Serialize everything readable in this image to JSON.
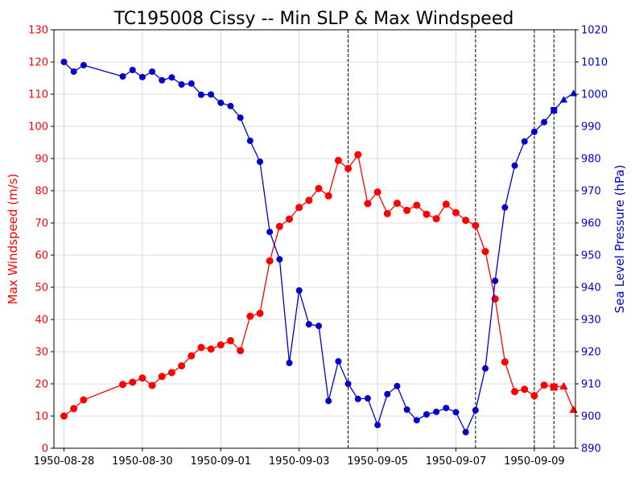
{
  "chart_data": {
    "type": "line",
    "title": "TC195008 Cissy -- Min SLP & Max Windspeed",
    "xlabel": "",
    "ylabel_left": "Max Windspeed (m/s)",
    "ylabel_right": "Sea Level Pressure (hPa)",
    "x_start": "1950-08-28",
    "x_tick_labels": [
      "1950-08-28",
      "1950-08-30",
      "1950-09-01",
      "1950-09-03",
      "1950-09-05",
      "1950-09-07",
      "1950-09-09"
    ],
    "ylim_left": [
      0,
      130
    ],
    "yticks_left": [
      0,
      10,
      20,
      30,
      40,
      50,
      60,
      70,
      80,
      90,
      100,
      110,
      120,
      130
    ],
    "ylim_right": [
      890,
      1020
    ],
    "yticks_right": [
      890,
      900,
      910,
      920,
      930,
      940,
      950,
      960,
      970,
      980,
      990,
      1000,
      1010,
      1020
    ],
    "grid": true,
    "vertical_lines": [
      "1950-09-04 06:00",
      "1950-09-07 12:00",
      "1950-09-09 00:00",
      "1950-09-09 12:00"
    ],
    "colors": {
      "wind": "#ff0000",
      "pressure": "#0000cc",
      "left_axis": "#ff0000",
      "right_axis": "#0000cc"
    },
    "series": [
      {
        "axis": "left",
        "color": "#ff0000",
        "points": [
          [
            "1950-08-28 00:00",
            10.0,
            "circle"
          ],
          [
            "1950-08-28 06:00",
            12.3,
            "circle"
          ],
          [
            "1950-08-28 12:00",
            15.0,
            "circle"
          ],
          [
            "1950-08-29 12:00",
            19.8,
            "circle"
          ],
          [
            "1950-08-29 18:00",
            20.5,
            "circle"
          ],
          [
            "1950-08-30 00:00",
            21.8,
            "circle"
          ],
          [
            "1950-08-30 06:00",
            19.5,
            "circle"
          ],
          [
            "1950-08-30 12:00",
            22.3,
            "circle"
          ],
          [
            "1950-08-30 18:00",
            23.5,
            "circle"
          ],
          [
            "1950-08-31 00:00",
            25.6,
            "circle"
          ],
          [
            "1950-08-31 06:00",
            28.7,
            "circle"
          ],
          [
            "1950-08-31 12:00",
            31.3,
            "circle"
          ],
          [
            "1950-08-31 18:00",
            30.8,
            "circle"
          ],
          [
            "1950-09-01 00:00",
            32.1,
            "circle"
          ],
          [
            "1950-09-01 06:00",
            33.4,
            "circle"
          ],
          [
            "1950-09-01 12:00",
            30.3,
            "circle"
          ],
          [
            "1950-09-01 18:00",
            41.0,
            "circle"
          ],
          [
            "1950-09-02 00:00",
            41.9,
            "circle"
          ],
          [
            "1950-09-02 06:00",
            58.2,
            "circle"
          ],
          [
            "1950-09-02 12:00",
            68.9,
            "circle"
          ],
          [
            "1950-09-02 18:00",
            71.2,
            "circle"
          ],
          [
            "1950-09-03 00:00",
            74.8,
            "circle"
          ],
          [
            "1950-09-03 06:00",
            77.0,
            "circle"
          ],
          [
            "1950-09-03 12:00",
            80.7,
            "circle"
          ],
          [
            "1950-09-03 18:00",
            78.4,
            "circle"
          ],
          [
            "1950-09-04 00:00",
            89.4,
            "circle"
          ],
          [
            "1950-09-04 06:00",
            86.9,
            "circle"
          ],
          [
            "1950-09-04 12:00",
            91.2,
            "circle"
          ],
          [
            "1950-09-04 18:00",
            76.0,
            "circle"
          ],
          [
            "1950-09-05 00:00",
            79.6,
            "circle"
          ],
          [
            "1950-09-05 06:00",
            72.9,
            "circle"
          ],
          [
            "1950-09-05 12:00",
            76.1,
            "circle"
          ],
          [
            "1950-09-05 18:00",
            73.9,
            "circle"
          ],
          [
            "1950-09-06 00:00",
            75.5,
            "circle"
          ],
          [
            "1950-09-06 06:00",
            72.7,
            "circle"
          ],
          [
            "1950-09-06 12:00",
            71.3,
            "circle"
          ],
          [
            "1950-09-06 18:00",
            75.8,
            "circle"
          ],
          [
            "1950-09-07 00:00",
            73.2,
            "circle"
          ],
          [
            "1950-09-07 06:00",
            70.8,
            "circle"
          ],
          [
            "1950-09-07 12:00",
            69.2,
            "circle"
          ],
          [
            "1950-09-07 18:00",
            61.1,
            "circle"
          ],
          [
            "1950-09-08 00:00",
            46.4,
            "circle"
          ],
          [
            "1950-09-08 06:00",
            26.8,
            "circle"
          ],
          [
            "1950-09-08 12:00",
            17.6,
            "circle"
          ],
          [
            "1950-09-08 18:00",
            18.3,
            "circle"
          ],
          [
            "1950-09-09 00:00",
            16.3,
            "circle"
          ],
          [
            "1950-09-09 06:00",
            19.6,
            "circle"
          ],
          [
            "1950-09-09 12:00",
            19.0,
            "square"
          ],
          [
            "1950-09-09 18:00",
            19.3,
            "triangle"
          ],
          [
            "1950-09-10 00:00",
            12.0,
            "triangle"
          ]
        ]
      },
      {
        "axis": "right",
        "color": "#0000cc",
        "points": [
          [
            "1950-08-28 00:00",
            1010.0,
            "circle"
          ],
          [
            "1950-08-28 06:00",
            1007.0,
            "circle"
          ],
          [
            "1950-08-28 12:00",
            1009.0,
            "circle"
          ],
          [
            "1950-08-29 12:00",
            1005.5,
            "circle"
          ],
          [
            "1950-08-29 18:00",
            1007.5,
            "circle"
          ],
          [
            "1950-08-30 00:00",
            1005.3,
            "circle"
          ],
          [
            "1950-08-30 06:00",
            1007.0,
            "circle"
          ],
          [
            "1950-08-30 12:00",
            1004.3,
            "circle"
          ],
          [
            "1950-08-30 18:00",
            1005.2,
            "circle"
          ],
          [
            "1950-08-31 00:00",
            1003.0,
            "circle"
          ],
          [
            "1950-08-31 06:00",
            1003.3,
            "circle"
          ],
          [
            "1950-08-31 12:00",
            999.8,
            "circle"
          ],
          [
            "1950-08-31 18:00",
            999.9,
            "circle"
          ],
          [
            "1950-09-01 00:00",
            997.3,
            "circle"
          ],
          [
            "1950-09-01 06:00",
            996.3,
            "circle"
          ],
          [
            "1950-09-01 12:00",
            992.7,
            "circle"
          ],
          [
            "1950-09-01 18:00",
            985.5,
            "circle"
          ],
          [
            "1950-09-02 00:00",
            979.0,
            "circle"
          ],
          [
            "1950-09-02 06:00",
            957.2,
            "circle"
          ],
          [
            "1950-09-02 12:00",
            948.7,
            "circle"
          ],
          [
            "1950-09-02 18:00",
            916.5,
            "circle"
          ],
          [
            "1950-09-03 00:00",
            939.0,
            "circle"
          ],
          [
            "1950-09-03 06:00",
            928.5,
            "circle"
          ],
          [
            "1950-09-03 12:00",
            928.0,
            "circle"
          ],
          [
            "1950-09-03 18:00",
            904.7,
            "circle"
          ],
          [
            "1950-09-04 00:00",
            917.0,
            "circle"
          ],
          [
            "1950-09-04 06:00",
            910.0,
            "circle"
          ],
          [
            "1950-09-04 12:00",
            905.3,
            "circle"
          ],
          [
            "1950-09-04 18:00",
            905.5,
            "circle"
          ],
          [
            "1950-09-05 00:00",
            897.2,
            "circle"
          ],
          [
            "1950-09-05 06:00",
            906.8,
            "circle"
          ],
          [
            "1950-09-05 12:00",
            909.3,
            "circle"
          ],
          [
            "1950-09-05 18:00",
            902.0,
            "circle"
          ],
          [
            "1950-09-06 00:00",
            898.7,
            "circle"
          ],
          [
            "1950-09-06 06:00",
            900.5,
            "circle"
          ],
          [
            "1950-09-06 12:00",
            901.3,
            "circle"
          ],
          [
            "1950-09-06 18:00",
            902.5,
            "circle"
          ],
          [
            "1950-09-07 00:00",
            901.2,
            "circle"
          ],
          [
            "1950-09-07 06:00",
            895.0,
            "circle"
          ],
          [
            "1950-09-07 12:00",
            901.8,
            "circle"
          ],
          [
            "1950-09-07 18:00",
            914.8,
            "circle"
          ],
          [
            "1950-09-08 00:00",
            942.0,
            "circle"
          ],
          [
            "1950-09-08 06:00",
            964.8,
            "circle"
          ],
          [
            "1950-09-08 12:00",
            977.8,
            "circle"
          ],
          [
            "1950-09-08 18:00",
            985.3,
            "circle"
          ],
          [
            "1950-09-09 00:00",
            988.3,
            "circle"
          ],
          [
            "1950-09-09 06:00",
            991.3,
            "circle"
          ],
          [
            "1950-09-09 12:00",
            995.0,
            "square"
          ],
          [
            "1950-09-09 18:00",
            998.3,
            "triangle"
          ],
          [
            "1950-09-10 00:00",
            1000.3,
            "triangle"
          ]
        ]
      }
    ]
  }
}
